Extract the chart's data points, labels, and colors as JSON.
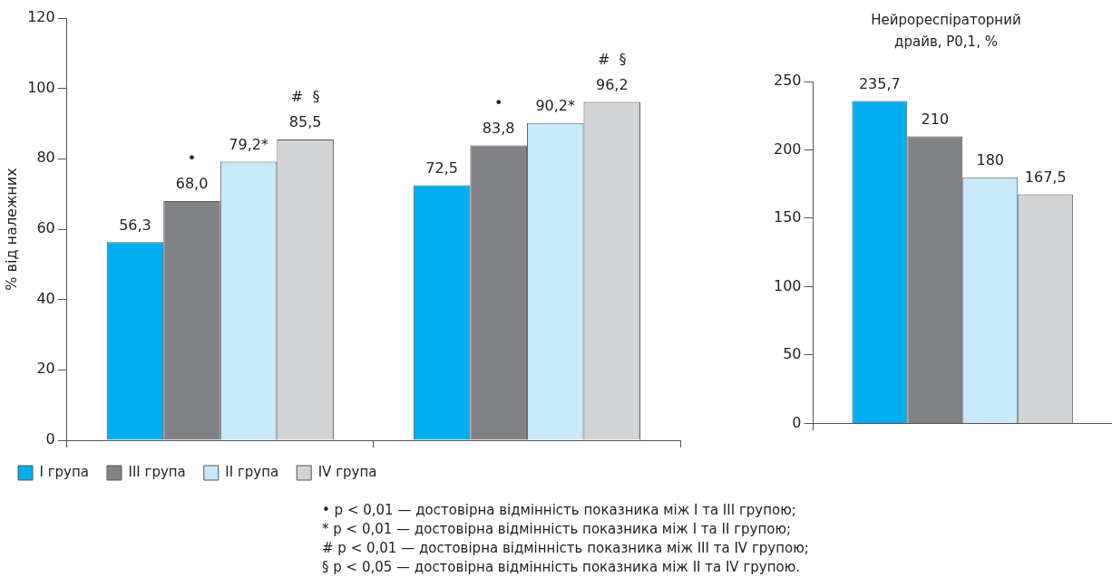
{
  "chart_data": [
    {
      "type": "bar",
      "ylabel": "% від належних",
      "categories": [
        null,
        null
      ],
      "ylim": [
        0,
        120
      ],
      "yticks": [
        0,
        20,
        40,
        60,
        80,
        100,
        120
      ],
      "legend": "bottom",
      "series": [
        {
          "name": "I група",
          "color": "#00aeef",
          "values": [
            56.3,
            72.5
          ],
          "value_labels": [
            "56,3",
            "72,5"
          ]
        },
        {
          "name": "III група",
          "color": "#808285",
          "values": [
            68.0,
            83.8
          ],
          "value_labels": [
            "•\n68,0",
            "•\n83,8"
          ]
        },
        {
          "name": "II група",
          "color": "#c7e9f9",
          "values": [
            79.2,
            90.2
          ],
          "value_labels": [
            "79,2*",
            "90,2*"
          ]
        },
        {
          "name": "IV група",
          "color": "#d1d3d4",
          "values": [
            85.5,
            96.2
          ],
          "value_labels": [
            "#  §\n85,5",
            "#  §\n96,2"
          ]
        }
      ],
      "annotations": [
        "• p < 0,01 — достовірна відмінність показника між I та III групою;",
        "* p < 0,01 — достовірна відмінність показника між I та II групою;",
        "# p < 0,01 — достовірна відмінність показника між III та IV групою;",
        "§ p < 0,05 — достовірна відмінність показника між II та IV групою."
      ]
    },
    {
      "type": "bar",
      "title": "Нейрореспіраторний драйв, P0,1, %",
      "categories": [
        null
      ],
      "ylim": [
        0,
        250
      ],
      "yticks": [
        0,
        50,
        100,
        150,
        200,
        250
      ],
      "series": [
        {
          "color": "#00aeef",
          "values": [
            235.7
          ],
          "value_labels": [
            "235,7"
          ]
        },
        {
          "color": "#808285",
          "values": [
            210
          ],
          "value_labels": [
            "210"
          ]
        },
        {
          "color": "#c7e9f9",
          "values": [
            180
          ],
          "value_labels": [
            "180"
          ]
        },
        {
          "color": "#d1d3d4",
          "values": [
            167.5
          ],
          "value_labels": [
            "167,5"
          ]
        }
      ]
    }
  ]
}
